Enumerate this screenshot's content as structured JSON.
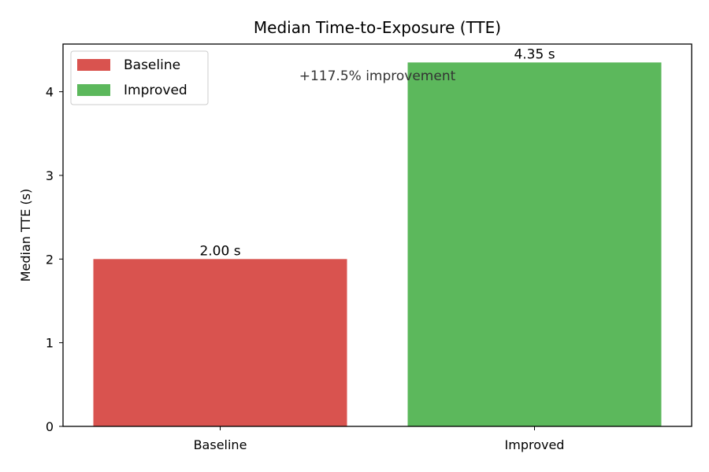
{
  "chart_data": {
    "type": "bar",
    "title": "Median Time-to-Exposure (TTE)",
    "xlabel": "",
    "ylabel": "Median TTE (s)",
    "categories": [
      "Baseline",
      "Improved"
    ],
    "values": [
      2.0,
      4.35
    ],
    "bar_labels": [
      "2.00 s",
      "4.35 s"
    ],
    "colors": [
      "#d9534f",
      "#5cb85c"
    ],
    "ylim": [
      0,
      4.57
    ],
    "yticks": [
      0,
      1,
      2,
      3,
      4
    ],
    "annotation": "+117.5% improvement",
    "legend": {
      "placement": "top-left",
      "entries": [
        {
          "label": "Baseline",
          "color": "#d9534f"
        },
        {
          "label": "Improved",
          "color": "#5cb85c"
        }
      ]
    },
    "grid": false
  }
}
